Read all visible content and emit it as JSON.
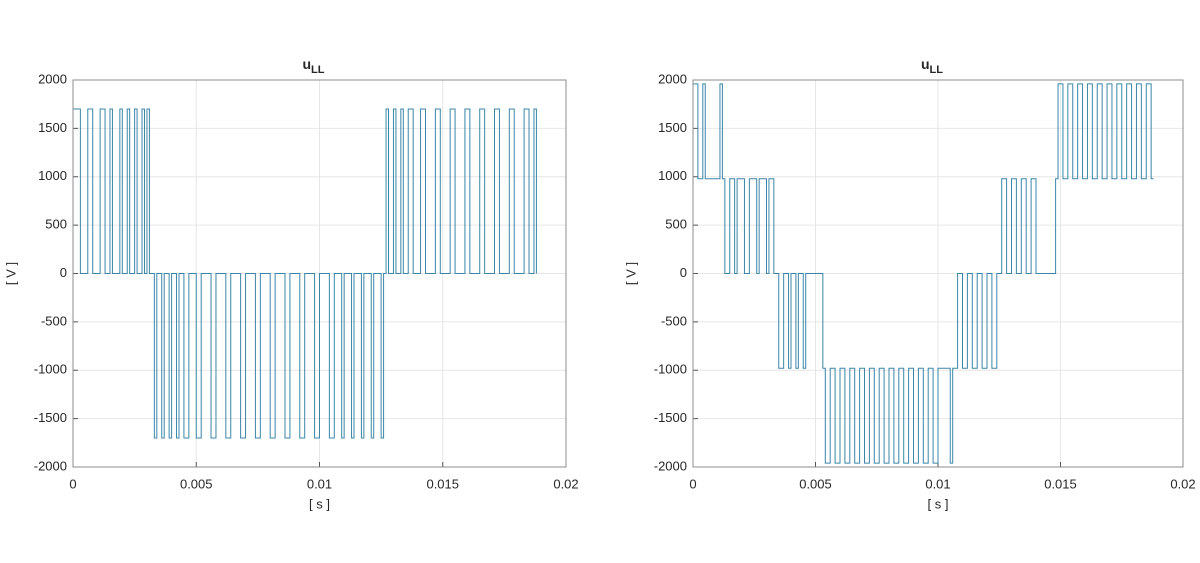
{
  "chart_data": [
    {
      "type": "line",
      "title": "u",
      "title_subscript": "LL",
      "x_label": "[ s ]",
      "y_label": "[ V ]",
      "color": "#3a86a8",
      "grid": true,
      "xlim": [
        0,
        0.02
      ],
      "xticks": [
        0,
        0.005,
        0.01,
        0.015,
        0.02
      ],
      "ylim": [
        -2000,
        2000
      ],
      "yticks": [
        -2000,
        -1500,
        -1000,
        -500,
        0,
        500,
        1000,
        1500,
        2000
      ],
      "x": [
        0,
        0,
        0.0003,
        0.0003,
        0.0006,
        0.0006,
        0.0008,
        0.0008,
        0.0011,
        0.0011,
        0.0013,
        0.0013,
        0.0015,
        0.0015,
        0.0016,
        0.0016,
        0.0019,
        0.0019,
        0.002,
        0.002,
        0.0022,
        0.0022,
        0.0023,
        0.0023,
        0.0025,
        0.0025,
        0.0026,
        0.0026,
        0.0028,
        0.0028,
        0.0029,
        0.0029,
        0.003,
        0.003,
        0.0031,
        0.0031,
        0.0033,
        0.0033,
        0.0034,
        0.0034,
        0.0036,
        0.0036,
        0.0037,
        0.0037,
        0.0039,
        0.0039,
        0.004,
        0.004,
        0.0042,
        0.0042,
        0.0043,
        0.0043,
        0.0045,
        0.0045,
        0.0047,
        0.0047,
        0.005,
        0.005,
        0.0052,
        0.0052,
        0.0056,
        0.0056,
        0.0058,
        0.0058,
        0.0062,
        0.0062,
        0.0064,
        0.0064,
        0.0068,
        0.0068,
        0.007,
        0.007,
        0.0074,
        0.0074,
        0.0076,
        0.0076,
        0.008,
        0.008,
        0.0082,
        0.0082,
        0.0086,
        0.0086,
        0.0088,
        0.0088,
        0.0092,
        0.0092,
        0.0094,
        0.0094,
        0.0098,
        0.0098,
        0.01,
        0.01,
        0.0104,
        0.0104,
        0.0106,
        0.0106,
        0.0109,
        0.0109,
        0.011,
        0.011,
        0.0113,
        0.0113,
        0.0114,
        0.0114,
        0.0117,
        0.0117,
        0.0118,
        0.0118,
        0.0121,
        0.0121,
        0.0122,
        0.0122,
        0.0125,
        0.0125,
        0.0126,
        0.0126,
        0.0127,
        0.0127,
        0.0128,
        0.0128,
        0.013,
        0.013,
        0.0131,
        0.0131,
        0.0133,
        0.0133,
        0.0134,
        0.0134,
        0.0136,
        0.0136,
        0.0138,
        0.0138,
        0.0141,
        0.0141,
        0.0143,
        0.0143,
        0.0147,
        0.0147,
        0.0149,
        0.0149,
        0.0153,
        0.0153,
        0.0155,
        0.0155,
        0.0159,
        0.0159,
        0.0161,
        0.0161,
        0.0165,
        0.0165,
        0.0167,
        0.0167,
        0.0171,
        0.0171,
        0.0173,
        0.0173,
        0.0177,
        0.0177,
        0.0179,
        0.0179,
        0.0183,
        0.0183,
        0.0185,
        0.0185,
        0.0187,
        0.0187,
        0.0188,
        0.0188
      ],
      "values": [
        0,
        1700,
        1700,
        0,
        0,
        1700,
        1700,
        0,
        0,
        1700,
        1700,
        0,
        0,
        1700,
        1700,
        0,
        0,
        1700,
        1700,
        0,
        0,
        1700,
        1700,
        0,
        0,
        1700,
        1700,
        0,
        0,
        1700,
        1700,
        0,
        0,
        1700,
        1700,
        0,
        0,
        -1700,
        -1700,
        0,
        0,
        -1700,
        -1700,
        0,
        0,
        -1700,
        -1700,
        0,
        0,
        -1700,
        -1700,
        0,
        0,
        -1700,
        -1700,
        0,
        0,
        -1700,
        -1700,
        0,
        0,
        -1700,
        -1700,
        0,
        0,
        -1700,
        -1700,
        0,
        0,
        -1700,
        -1700,
        0,
        0,
        -1700,
        -1700,
        0,
        0,
        -1700,
        -1700,
        0,
        0,
        -1700,
        -1700,
        0,
        0,
        -1700,
        -1700,
        0,
        0,
        -1700,
        -1700,
        0,
        0,
        -1700,
        -1700,
        0,
        0,
        -1700,
        -1700,
        0,
        0,
        -1700,
        -1700,
        0,
        0,
        -1700,
        -1700,
        0,
        0,
        -1700,
        -1700,
        0,
        0,
        -1700,
        -1700,
        0,
        0,
        1700,
        1700,
        0,
        0,
        1700,
        1700,
        0,
        0,
        1700,
        1700,
        0,
        0,
        1700,
        1700,
        0,
        0,
        1700,
        1700,
        0,
        0,
        1700,
        1700,
        0,
        0,
        1700,
        1700,
        0,
        0,
        1700,
        1700,
        0,
        0,
        1700,
        1700,
        0,
        0,
        1700,
        1700,
        0,
        0,
        1700,
        1700,
        0,
        0,
        1700,
        1700,
        0,
        0,
        1700,
        1700,
        0
      ]
    },
    {
      "type": "line",
      "title": "u",
      "title_subscript": "LL",
      "x_label": "[ s ]",
      "y_label": "[ V ]",
      "color": "#3a86a8",
      "grid": true,
      "xlim": [
        0,
        0.02
      ],
      "xticks": [
        0,
        0.005,
        0.01,
        0.015,
        0.02
      ],
      "ylim": [
        -2000,
        2000
      ],
      "yticks": [
        -2000,
        -1500,
        -1000,
        -500,
        0,
        500,
        1000,
        1500,
        2000
      ],
      "x": [
        0,
        0,
        0.0002,
        0.0002,
        0.0004,
        0.0004,
        0.0005,
        0.0005,
        0.0011,
        0.0011,
        0.0012,
        0.0012,
        0.0013,
        0.0013,
        0.0015,
        0.0015,
        0.0017,
        0.0017,
        0.0018,
        0.0018,
        0.0021,
        0.0021,
        0.0023,
        0.0023,
        0.0026,
        0.0026,
        0.0027,
        0.0027,
        0.003,
        0.003,
        0.0031,
        0.0031,
        0.0033,
        0.0033,
        0.0035,
        0.0035,
        0.0037,
        0.0037,
        0.0039,
        0.0039,
        0.004,
        0.004,
        0.0042,
        0.0042,
        0.0043,
        0.0043,
        0.0045,
        0.0045,
        0.0046,
        0.0046,
        0.0053,
        0.0053,
        0.0054,
        0.0054,
        0.0056,
        0.0056,
        0.0058,
        0.0058,
        0.006,
        0.006,
        0.0062,
        0.0062,
        0.0064,
        0.0064,
        0.0066,
        0.0066,
        0.0068,
        0.0068,
        0.007,
        0.007,
        0.0072,
        0.0072,
        0.0074,
        0.0074,
        0.0076,
        0.0076,
        0.0078,
        0.0078,
        0.008,
        0.008,
        0.0082,
        0.0082,
        0.0084,
        0.0084,
        0.0086,
        0.0086,
        0.0088,
        0.0088,
        0.009,
        0.009,
        0.0092,
        0.0092,
        0.0094,
        0.0094,
        0.0096,
        0.0096,
        0.0098,
        0.0098,
        0.01,
        0.01,
        0.0105,
        0.0105,
        0.0106,
        0.0106,
        0.0108,
        0.0108,
        0.011,
        0.011,
        0.0112,
        0.0112,
        0.0114,
        0.0114,
        0.0116,
        0.0116,
        0.0118,
        0.0118,
        0.012,
        0.012,
        0.0122,
        0.0122,
        0.0124,
        0.0124,
        0.0126,
        0.0126,
        0.0128,
        0.0128,
        0.013,
        0.013,
        0.0132,
        0.0132,
        0.0134,
        0.0134,
        0.0136,
        0.0136,
        0.0138,
        0.0138,
        0.014,
        0.014,
        0.0148,
        0.0148,
        0.0149,
        0.0149,
        0.0151,
        0.0151,
        0.0153,
        0.0153,
        0.0155,
        0.0155,
        0.0157,
        0.0157,
        0.0159,
        0.0159,
        0.0161,
        0.0161,
        0.0163,
        0.0163,
        0.0165,
        0.0165,
        0.0167,
        0.0167,
        0.0169,
        0.0169,
        0.0171,
        0.0171,
        0.0173,
        0.0173,
        0.0175,
        0.0175,
        0.0177,
        0.0177,
        0.0179,
        0.0179,
        0.0181,
        0.0181,
        0.0183,
        0.0183,
        0.0185,
        0.0185,
        0.0187,
        0.0187,
        0.0188
      ],
      "values": [
        980,
        1960,
        1960,
        980,
        980,
        1960,
        1960,
        980,
        980,
        1960,
        1960,
        980,
        980,
        0,
        0,
        980,
        980,
        0,
        0,
        980,
        980,
        0,
        0,
        980,
        980,
        0,
        0,
        980,
        980,
        0,
        0,
        980,
        980,
        0,
        0,
        -980,
        -980,
        0,
        0,
        -980,
        -980,
        0,
        0,
        -980,
        -980,
        0,
        0,
        -980,
        -980,
        0,
        0,
        -980,
        -980,
        -1960,
        -1960,
        -980,
        -980,
        -1960,
        -1960,
        -980,
        -980,
        -1960,
        -1960,
        -980,
        -980,
        -1960,
        -1960,
        -980,
        -980,
        -1960,
        -1960,
        -980,
        -980,
        -1960,
        -1960,
        -980,
        -980,
        -1960,
        -1960,
        -980,
        -980,
        -1960,
        -1960,
        -980,
        -980,
        -1960,
        -1960,
        -980,
        -980,
        -1960,
        -1960,
        -980,
        -980,
        -1960,
        -1960,
        -980,
        -980,
        -1960,
        -1960,
        -980,
        -980,
        -1960,
        -1960,
        -980,
        -980,
        0,
        0,
        -980,
        -980,
        0,
        0,
        -980,
        -980,
        0,
        0,
        -980,
        -980,
        0,
        0,
        -980,
        -980,
        0,
        0,
        980,
        980,
        0,
        0,
        980,
        980,
        0,
        0,
        980,
        980,
        0,
        0,
        980,
        980,
        0,
        0,
        980,
        980,
        1960,
        1960,
        980,
        980,
        1960,
        1960,
        980,
        980,
        1960,
        1960,
        980,
        980,
        1960,
        1960,
        980,
        980,
        1960,
        1960,
        980,
        980,
        1960,
        1960,
        980,
        980,
        1960,
        1960,
        980,
        980,
        1960,
        1960,
        980,
        980,
        1960,
        1960,
        980,
        980,
        1960,
        1960,
        980,
        980
      ]
    }
  ]
}
